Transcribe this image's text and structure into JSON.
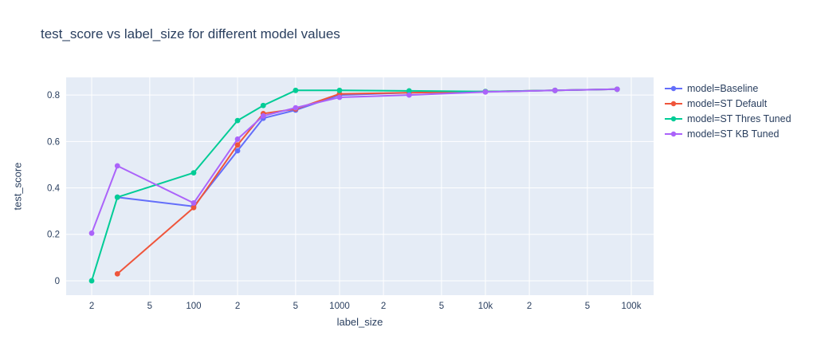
{
  "title": "test_score vs label_size for different model values",
  "colors": {
    "background": "#ffffff",
    "plot_background": "#e5ecf6",
    "grid": "#ffffff",
    "text": "#2a3f5f"
  },
  "chart_data": {
    "type": "line",
    "title": "test_score vs label_size for different model values",
    "xlabel": "label_size",
    "ylabel": "test_score",
    "x_scale": "log",
    "x_domain_log10": [
      1.126,
      5.153
    ],
    "y_domain": [
      -0.062,
      0.876
    ],
    "grid": true,
    "legend_position": "right",
    "x_ticks": [
      {
        "value": 20,
        "label": "2"
      },
      {
        "value": 50,
        "label": "5"
      },
      {
        "value": 100,
        "label": "100"
      },
      {
        "value": 200,
        "label": "2"
      },
      {
        "value": 500,
        "label": "5"
      },
      {
        "value": 1000,
        "label": "1000"
      },
      {
        "value": 2000,
        "label": "2"
      },
      {
        "value": 5000,
        "label": "5"
      },
      {
        "value": 10000,
        "label": "10k"
      },
      {
        "value": 20000,
        "label": "2"
      },
      {
        "value": 50000,
        "label": "5"
      },
      {
        "value": 100000,
        "label": "100k"
      }
    ],
    "y_ticks": [
      {
        "value": 0,
        "label": "0"
      },
      {
        "value": 0.2,
        "label": "0.2"
      },
      {
        "value": 0.4,
        "label": "0.4"
      },
      {
        "value": 0.6,
        "label": "0.6"
      },
      {
        "value": 0.8,
        "label": "0.8"
      }
    ],
    "series": [
      {
        "name": "model=Baseline",
        "color": "#636efa",
        "x": [
          30,
          100,
          200,
          300,
          500,
          1000,
          3000,
          10000,
          30000,
          80000
        ],
        "y": [
          0.36,
          0.32,
          0.56,
          0.7,
          0.735,
          0.8,
          0.81,
          0.815,
          0.82,
          0.825
        ]
      },
      {
        "name": "model=ST Default",
        "color": "#ef553b",
        "x": [
          30,
          100,
          200,
          300,
          500,
          1000,
          3000,
          10000,
          30000,
          80000
        ],
        "y": [
          0.03,
          0.315,
          0.585,
          0.72,
          0.74,
          0.805,
          0.81,
          0.815,
          0.82,
          0.825
        ]
      },
      {
        "name": "model=ST Thres Tuned",
        "color": "#00cc96",
        "x": [
          20,
          30,
          100,
          200,
          300,
          500,
          1000,
          3000,
          10000,
          30000,
          80000
        ],
        "y": [
          0.0,
          0.36,
          0.465,
          0.69,
          0.755,
          0.82,
          0.82,
          0.818,
          0.815,
          0.82,
          0.825
        ]
      },
      {
        "name": "model=ST KB Tuned",
        "color": "#ab63fa",
        "x": [
          20,
          30,
          100,
          200,
          300,
          500,
          1000,
          3000,
          10000,
          30000,
          80000
        ],
        "y": [
          0.205,
          0.495,
          0.335,
          0.61,
          0.71,
          0.745,
          0.79,
          0.8,
          0.813,
          0.82,
          0.825
        ]
      }
    ]
  }
}
